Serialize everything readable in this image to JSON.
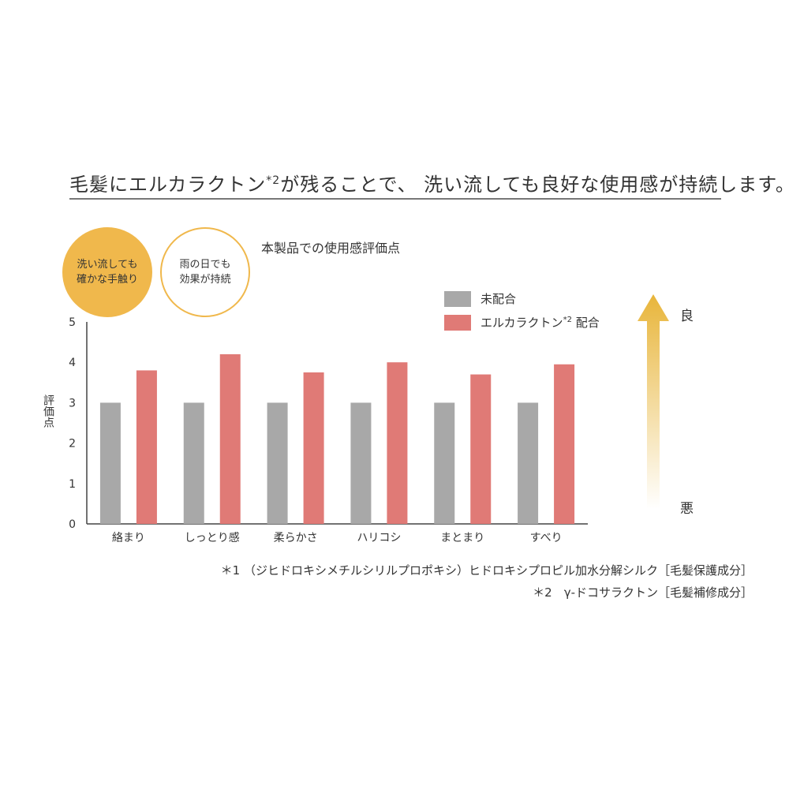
{
  "headline": {
    "text_before": "毛髪にエルカラクトン",
    "superscript": "*2",
    "text_after": "が残ることで、 洗い流しても良好な使用感が持続します。"
  },
  "badges": [
    {
      "text": "洗い流しても\n確かな手触り"
    },
    {
      "text": "雨の日でも\n効果が持続"
    }
  ],
  "chart_data": {
    "type": "bar",
    "title": "本製品での使用感評価点",
    "ylabel": "評価点",
    "xlabel": "",
    "ylim": [
      0,
      5
    ],
    "yticks": [
      0,
      1,
      2,
      3,
      4,
      5
    ],
    "categories": [
      "絡まり",
      "しっとり感",
      "柔らかさ",
      "ハリコシ",
      "まとまり",
      "すべり"
    ],
    "series": [
      {
        "name": "未配合",
        "color": "#a8a8a8",
        "values": [
          3.0,
          3.0,
          3.0,
          3.0,
          3.0,
          3.0
        ]
      },
      {
        "name": "エルカラクトン*2 配合",
        "color": "#e07a76",
        "values": [
          3.8,
          4.2,
          3.75,
          4.0,
          3.7,
          3.95
        ]
      }
    ],
    "legend_position": "top-right",
    "grid": false
  },
  "legend": {
    "item1": "未配合",
    "item2_before": "エルカラクトン",
    "item2_sup": "*2",
    "item2_after": " 配合"
  },
  "scale": {
    "good": "良",
    "bad": "悪",
    "arrow_color": "#e8b53a"
  },
  "footnotes": {
    "fn1": "＊1 （ジヒドロキシメチルシリルプロポキシ）ヒドロキシプロピル加水分解シルク［毛髪保護成分］",
    "fn2": "＊2　γ-ドコサラクトン［毛髪補修成分］"
  }
}
